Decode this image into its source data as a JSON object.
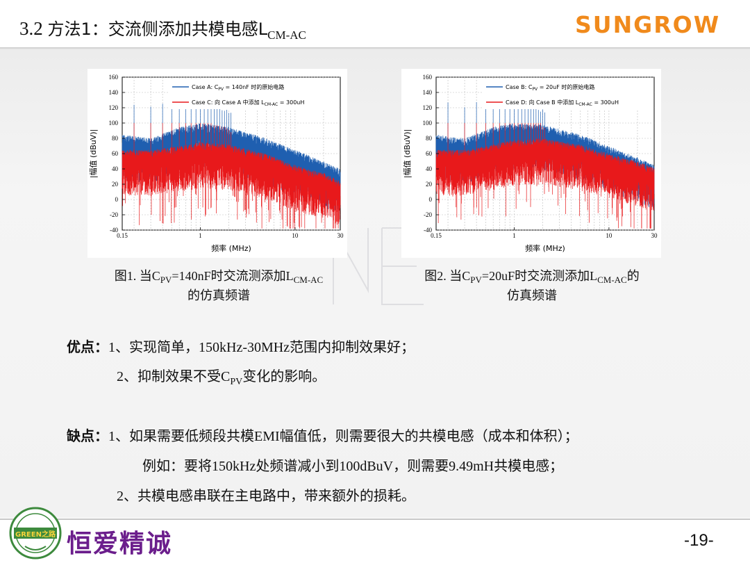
{
  "header": {
    "title_prefix": "3.2 ",
    "title_main": "方法1：交流侧添加共模电感L",
    "title_sub": "CM-AC",
    "brand": "SUNGROW"
  },
  "chart_data": [
    {
      "type": "line",
      "xscale": "log",
      "xlim": [
        0.15,
        30
      ],
      "ylim": [
        -40,
        160
      ],
      "xticks": [
        "0.15",
        "1",
        "10",
        "30"
      ],
      "yticks": [
        "160",
        "140",
        "120",
        "100",
        "80",
        "60",
        "40",
        "20",
        "0",
        "-20",
        "-40"
      ],
      "xlabel": "频率 (MHz)",
      "ylabel": "|幅值 (dBuV)|",
      "grid": true,
      "legend_position": "top-right",
      "series": [
        {
          "name": "Case A: CPV = 140nF 时的原始电路",
          "color": "#1f5fb0",
          "x": [
            0.15,
            0.3,
            0.6,
            1,
            2,
            5,
            10,
            20,
            30
          ],
          "envelope_top": [
            85,
            80,
            95,
            100,
            95,
            80,
            65,
            50,
            40
          ],
          "peak_max": 145
        },
        {
          "name": "Case C: 向 Case A 中添加 LCM-AC = 300uH",
          "color": "#e8191b",
          "x": [
            0.15,
            0.3,
            0.6,
            1,
            2,
            5,
            10,
            20,
            30
          ],
          "envelope_top": [
            65,
            65,
            70,
            75,
            72,
            60,
            45,
            35,
            25
          ],
          "peak_max": 100
        }
      ]
    },
    {
      "type": "line",
      "xscale": "log",
      "xlim": [
        0.15,
        30
      ],
      "ylim": [
        -40,
        160
      ],
      "xticks": [
        "0.15",
        "1",
        "10",
        "30"
      ],
      "yticks": [
        "160",
        "140",
        "120",
        "100",
        "80",
        "60",
        "40",
        "20",
        "0",
        "-20",
        "-40"
      ],
      "xlabel": "频率 (MHz)",
      "ylabel": "|幅值 (dBuV)|",
      "grid": true,
      "legend_position": "top-right",
      "series": [
        {
          "name": "Case B: CPV = 20uF 时的原始电路",
          "color": "#1f5fb0",
          "x": [
            0.15,
            0.3,
            0.6,
            1,
            2,
            5,
            10,
            20,
            30
          ],
          "envelope_top": [
            85,
            80,
            95,
            100,
            98,
            85,
            70,
            55,
            45
          ],
          "peak_max": 145
        },
        {
          "name": "Case D: 向 Case B 中添加 LCM-AC = 300uH",
          "color": "#e8191b",
          "x": [
            0.15,
            0.3,
            0.6,
            1,
            2,
            5,
            10,
            20,
            30
          ],
          "envelope_top": [
            65,
            65,
            72,
            78,
            80,
            72,
            60,
            50,
            42
          ],
          "peak_max": 100
        }
      ]
    }
  ],
  "legend_text": {
    "c1_a": [
      "Case A: C",
      "PV",
      " = 140nF 时的原始电路"
    ],
    "c1_c": [
      "Case C: 向 Case A 中添加 L",
      "CM-AC",
      " = 300uH"
    ],
    "c2_b": [
      "Case B: C",
      "PV",
      " = 20uF 时的原始电路"
    ],
    "c2_d": [
      "Case D: 向 Case B 中添加 L",
      "CM-AC",
      " = 300uH"
    ]
  },
  "captions": {
    "fig1_a": "图1. 当C",
    "fig1_sub1": "PV",
    "fig1_b": "=140nF时交流测添加L",
    "fig1_sub2": "CM-AC",
    "fig1_line2": "的仿真频谱",
    "fig2_a": "图2. 当C",
    "fig2_sub1": "PV",
    "fig2_b": "=20uF时交流测添加L",
    "fig2_sub2": "CM-AC",
    "fig2_c": "的",
    "fig2_line2": "仿真频谱"
  },
  "body": {
    "adv_label": "优点：",
    "adv1": "1、实现简单，150kHz-30MHz范围内抑制效果好；",
    "adv2_a": "2、抑制效果不受C",
    "adv2_sub": "PV",
    "adv2_b": "变化的影响。",
    "dis_label": "缺点：",
    "dis1": "1、如果需要低频段共模EMI幅值低，则需要很大的共模电感（成本和体积）；",
    "dis1_example": "例如：要将150kHz处频谱减小到100dBuV，则需要9.49mH共模电感；",
    "dis2": "2、共模电感串联在主电路中，带来额外的损耗。"
  },
  "footer": {
    "seal_text": "GREEN之路",
    "slogan": "恒爱精诚",
    "page_number": "-19-"
  }
}
